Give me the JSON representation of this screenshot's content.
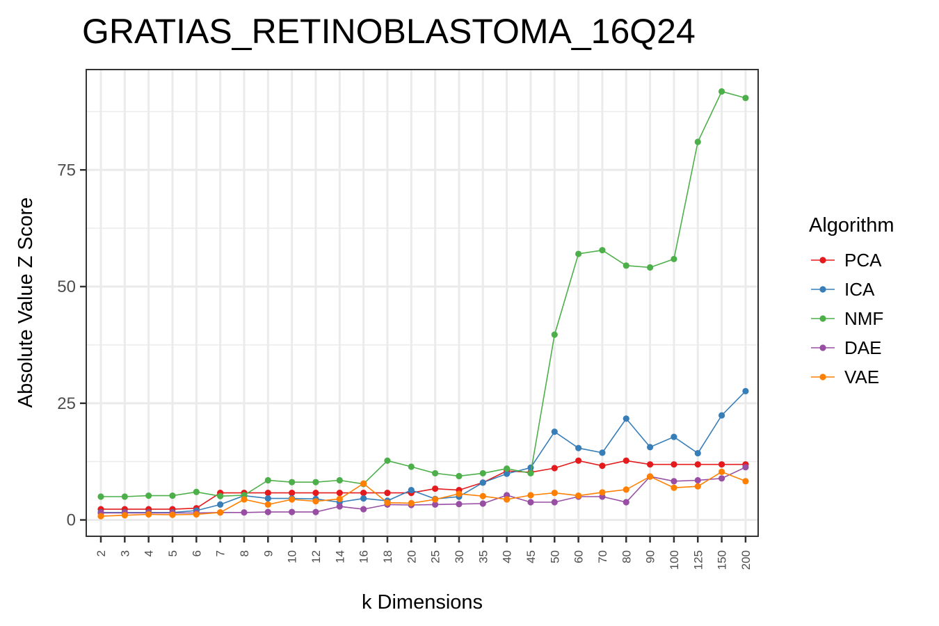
{
  "chart_data": {
    "type": "line",
    "title": "GRATIAS_RETINOBLASTOMA_16Q24",
    "xlabel": "k Dimensions",
    "ylabel": "Absolute Value Z Score",
    "categories": [
      "2",
      "3",
      "4",
      "5",
      "6",
      "7",
      "8",
      "9",
      "10",
      "12",
      "14",
      "16",
      "18",
      "20",
      "25",
      "30",
      "35",
      "40",
      "45",
      "50",
      "60",
      "70",
      "80",
      "90",
      "100",
      "125",
      "150",
      "200"
    ],
    "yticks": [
      "0",
      "25",
      "50",
      "75"
    ],
    "ylim": [
      -3.5,
      96.5
    ],
    "grid": true,
    "legend": {
      "title": "Algorithm",
      "position": "right"
    },
    "series": [
      {
        "name": "PCA",
        "color": "#e41a1c",
        "values": [
          2.3,
          2.3,
          2.3,
          2.3,
          2.5,
          5.8,
          5.8,
          5.8,
          5.8,
          5.8,
          5.8,
          5.8,
          5.8,
          5.8,
          6.7,
          6.4,
          8,
          10.5,
          10.2,
          11.1,
          12.7,
          11.6,
          12.7,
          11.9,
          11.9,
          11.9,
          11.9,
          11.9
        ]
      },
      {
        "name": "ICA",
        "color": "#377eb8",
        "values": [
          1.6,
          1.6,
          1.6,
          1.6,
          2,
          3.3,
          5.2,
          4.6,
          4.6,
          4.5,
          3.8,
          4.6,
          4.1,
          6.4,
          4.5,
          5,
          8,
          9.9,
          11.2,
          18.9,
          15.4,
          14.4,
          21.7,
          15.6,
          17.8,
          14.3,
          22.4,
          27.6
        ]
      },
      {
        "name": "NMF",
        "color": "#4daf4a",
        "values": [
          5,
          5,
          5.2,
          5.2,
          6,
          5.1,
          5.3,
          8.5,
          8.1,
          8.1,
          8.5,
          7.7,
          12.7,
          11.4,
          10,
          9.4,
          10,
          11,
          10,
          39.7,
          57,
          57.8,
          54.5,
          54.1,
          55.9,
          81,
          91.8,
          90.4
        ]
      },
      {
        "name": "DAE",
        "color": "#984ea3",
        "values": [
          1.5,
          1.5,
          1.5,
          1.5,
          1.5,
          1.6,
          1.6,
          1.7,
          1.7,
          1.7,
          2.9,
          2.3,
          3.3,
          3.2,
          3.3,
          3.4,
          3.5,
          5.3,
          3.8,
          3.8,
          5,
          5,
          3.8,
          9.3,
          8.3,
          8.5,
          8.9,
          11.3
        ]
      },
      {
        "name": "VAE",
        "color": "#ff7f00",
        "values": [
          0.8,
          1,
          1.2,
          1.1,
          1.2,
          1.6,
          4.4,
          3.3,
          4.4,
          4,
          4.5,
          7.8,
          3.7,
          3.6,
          4.4,
          5.6,
          5.1,
          4.4,
          5.3,
          5.8,
          5.2,
          5.9,
          6.5,
          9.3,
          6.9,
          7.2,
          10.3,
          8.3
        ]
      }
    ]
  }
}
